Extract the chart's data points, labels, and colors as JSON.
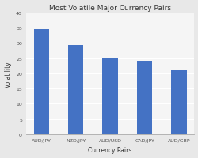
{
  "title": "Most Volatile Major Currency Pairs",
  "xlabel": "Currency Pairs",
  "ylabel": "Volatility",
  "categories": [
    "AUD/JPY",
    "NZD/JPY",
    "AUD/USD",
    "CAD/JPY",
    "AUD/GBP"
  ],
  "values": [
    34.5,
    29.2,
    25.0,
    24.2,
    21.0
  ],
  "bar_color": "#4472C4",
  "ylim": [
    0,
    40
  ],
  "yticks": [
    0,
    5,
    10,
    15,
    20,
    25,
    30,
    35,
    40
  ],
  "fig_background_color": "#e8e8e8",
  "plot_background_color": "#f5f5f5",
  "grid_color": "#ffffff",
  "title_fontsize": 6.5,
  "label_fontsize": 5.5,
  "tick_fontsize": 4.5,
  "bar_width": 0.45
}
